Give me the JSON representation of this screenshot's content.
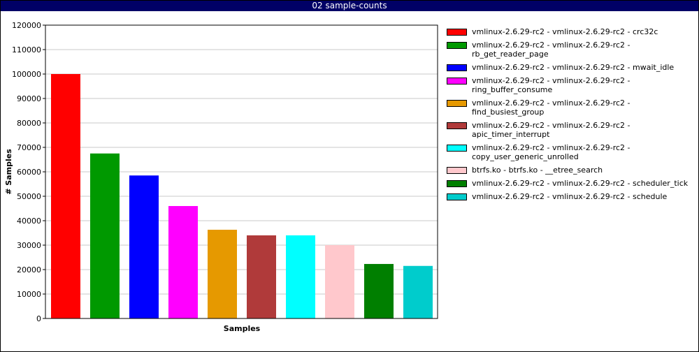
{
  "window": {
    "title": "02 sample-counts"
  },
  "chart_data": {
    "type": "bar",
    "xlabel": "Samples",
    "ylabel": "# Samples",
    "ylim": [
      0,
      120000
    ],
    "yticks": [
      0,
      10000,
      20000,
      30000,
      40000,
      50000,
      60000,
      70000,
      80000,
      90000,
      100000,
      110000,
      120000
    ],
    "grid": true,
    "legend_position": "right",
    "series": [
      {
        "name": "vmlinux-2.6.29-rc2 - vmlinux-2.6.29-rc2 - crc32c",
        "value": 100000,
        "color": "#ff0000"
      },
      {
        "name": "vmlinux-2.6.29-rc2 - vmlinux-2.6.29-rc2 - rb_get_reader_page",
        "value": 67500,
        "color": "#009900"
      },
      {
        "name": "vmlinux-2.6.29-rc2 - vmlinux-2.6.29-rc2 - mwait_idle",
        "value": 58500,
        "color": "#0000ff"
      },
      {
        "name": "vmlinux-2.6.29-rc2 - vmlinux-2.6.29-rc2 - ring_buffer_consume",
        "value": 46000,
        "color": "#ff00ff"
      },
      {
        "name": "vmlinux-2.6.29-rc2 - vmlinux-2.6.29-rc2 - find_busiest_group",
        "value": 36300,
        "color": "#e69900"
      },
      {
        "name": "vmlinux-2.6.29-rc2 - vmlinux-2.6.29-rc2 - apic_timer_interrupt",
        "value": 34000,
        "color": "#b03a3a"
      },
      {
        "name": "vmlinux-2.6.29-rc2 - vmlinux-2.6.29-rc2 - copy_user_generic_unrolled",
        "value": 34000,
        "color": "#00ffff"
      },
      {
        "name": "btrfs.ko - btrfs.ko - __etree_search",
        "value": 30000,
        "color": "#ffc8cc"
      },
      {
        "name": "vmlinux-2.6.29-rc2 - vmlinux-2.6.29-rc2 - scheduler_tick",
        "value": 22300,
        "color": "#007f00"
      },
      {
        "name": "vmlinux-2.6.29-rc2 - vmlinux-2.6.29-rc2 - schedule",
        "value": 21500,
        "color": "#00cccc"
      }
    ]
  }
}
